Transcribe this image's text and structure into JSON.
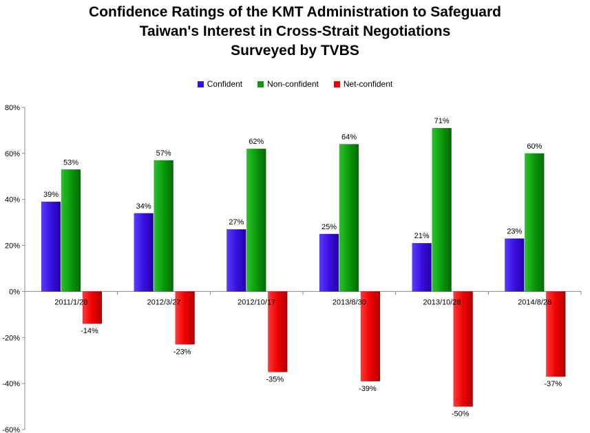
{
  "chart_data": {
    "type": "bar",
    "title_lines": [
      "Confidence Ratings of the KMT Administration to Safeguard",
      "Taiwan's Interest in Cross-Strait Negotiations",
      "Surveyed by TVBS"
    ],
    "categories": [
      "2011/1/28",
      "2012/3/27",
      "2012/10/17",
      "2013/8/30",
      "2013/10/28",
      "2014/8/28"
    ],
    "series": [
      {
        "name": "Confident",
        "color": "#3a10e0",
        "values": [
          39,
          34,
          27,
          25,
          21,
          23
        ],
        "labels": [
          "39%",
          "34%",
          "27%",
          "25%",
          "21%",
          "23%"
        ]
      },
      {
        "name": "Non-confident",
        "color": "#0a9a0a",
        "values": [
          53,
          57,
          62,
          64,
          71,
          60
        ],
        "labels": [
          "53%",
          "57%",
          "62%",
          "64%",
          "71%",
          "60%"
        ]
      },
      {
        "name": "Net-confident",
        "color": "#ee0000",
        "values": [
          -14,
          -23,
          -35,
          -39,
          -50,
          -37
        ],
        "labels": [
          "-14%",
          "-23%",
          "-35%",
          "-39%",
          "-50%",
          "-37%"
        ]
      }
    ],
    "ylim": [
      -60,
      80
    ],
    "y_ticks": [
      80,
      60,
      40,
      20,
      0,
      -20,
      -40,
      -60
    ],
    "y_tick_labels": [
      "80%",
      "60%",
      "40%",
      "20%",
      "0%",
      "-20%",
      "-40%",
      "-60%"
    ],
    "legend_position": "top-center",
    "grid": false
  }
}
